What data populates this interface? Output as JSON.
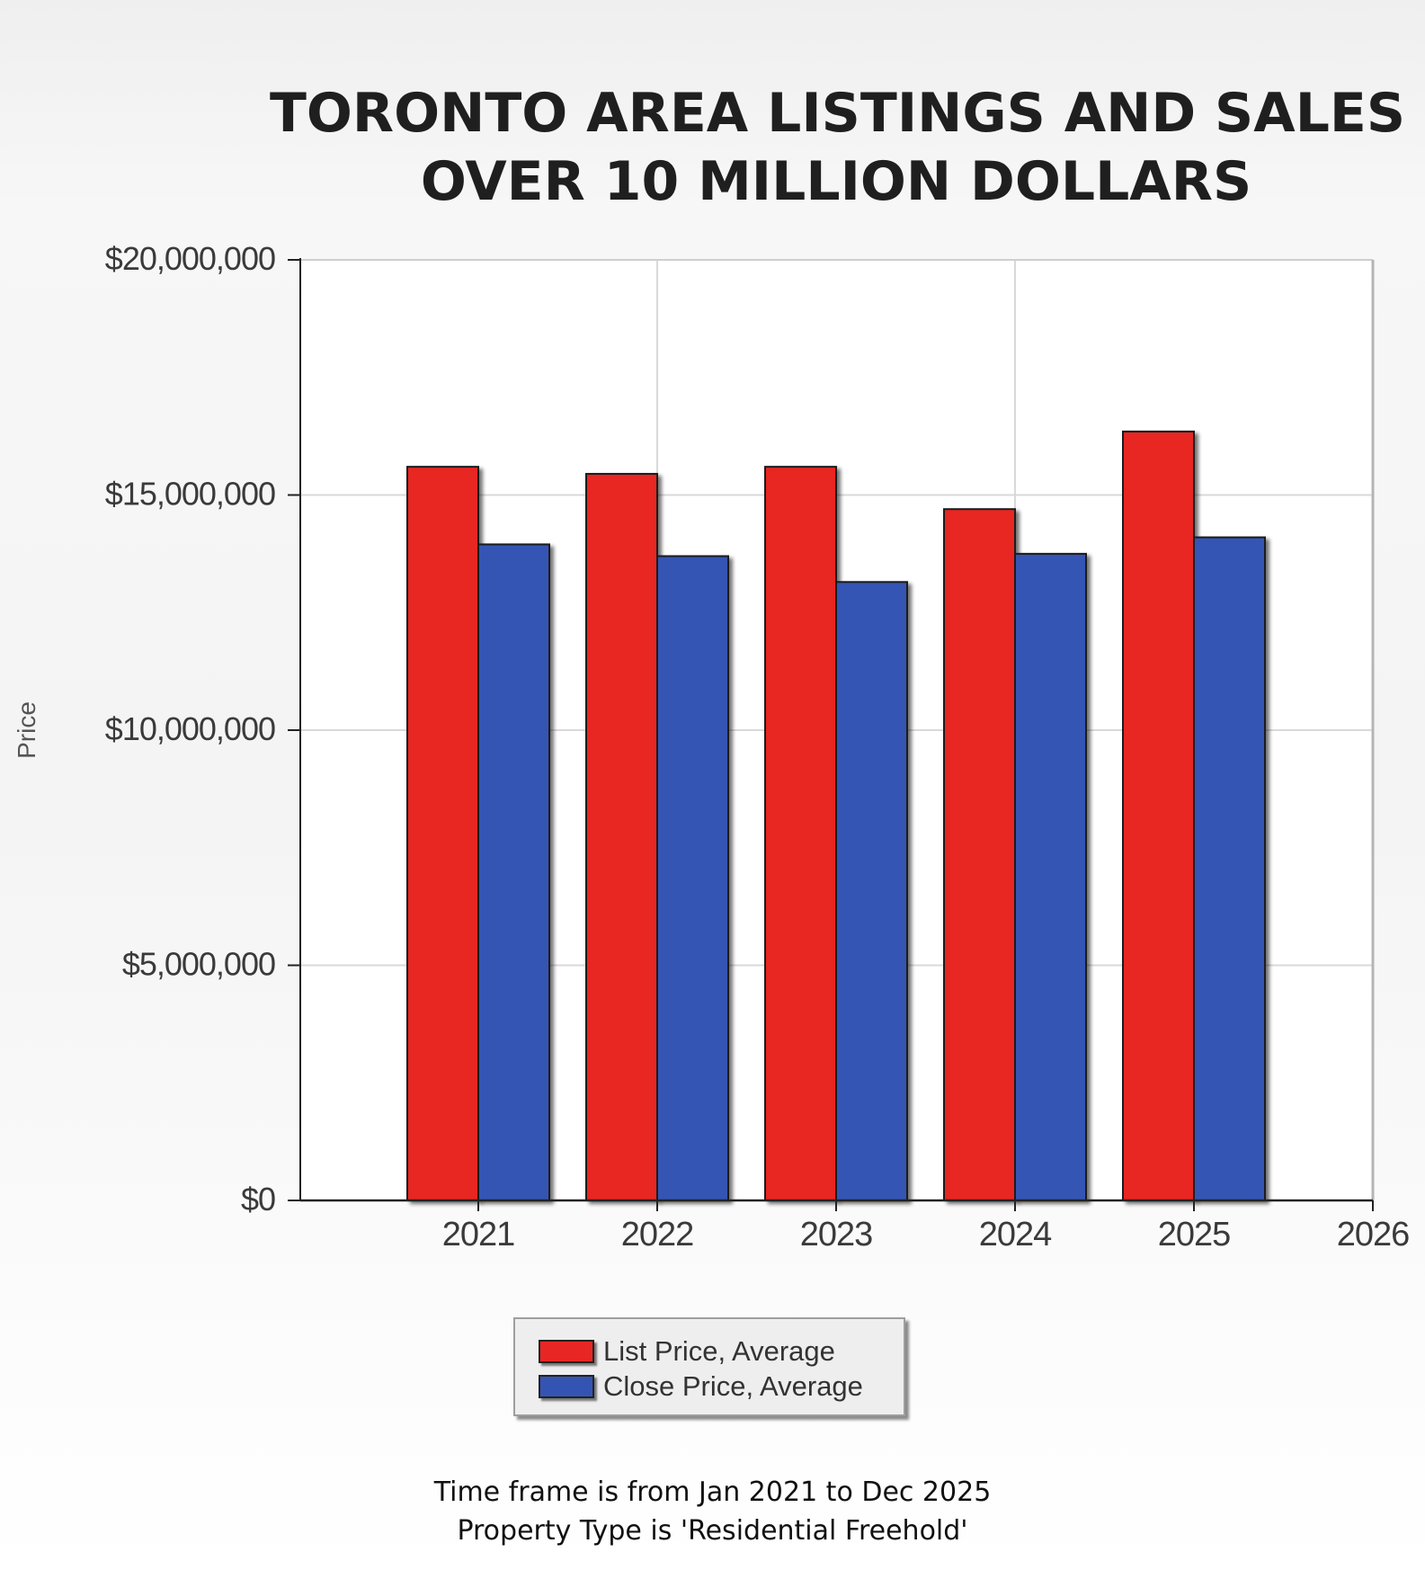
{
  "title_lines": [
    "TORONTO AREA LISTINGS AND SALES",
    "OVER 10 MILLION DOLLARS"
  ],
  "footer_lines": [
    "Time frame is from Jan 2021 to Dec 2025",
    "Property Type is 'Residential Freehold'"
  ],
  "colors": {
    "list_price": "#e82623",
    "close_price": "#3454b4"
  },
  "chart_data": {
    "type": "bar",
    "title": "TORONTO AREA LISTINGS AND SALES OVER 10 MILLION DOLLARS",
    "xlabel": "",
    "ylabel": "Price",
    "categories": [
      "2021",
      "2022",
      "2023",
      "2024",
      "2025"
    ],
    "x_ticks": [
      "2021",
      "2022",
      "2023",
      "2024",
      "2025",
      "2026"
    ],
    "y_ticks": [
      {
        "value": 0,
        "label": "$0"
      },
      {
        "value": 5000000,
        "label": "$5,000,000"
      },
      {
        "value": 10000000,
        "label": "$10,000,000"
      },
      {
        "value": 15000000,
        "label": "$15,000,000"
      },
      {
        "value": 20000000,
        "label": "$20,000,000"
      }
    ],
    "ylim": [
      0,
      20000000
    ],
    "grid": true,
    "legend_position": "bottom-center",
    "series": [
      {
        "name": "List Price, Average",
        "color_key": "list_price",
        "values": [
          15600000,
          15450000,
          15600000,
          14700000,
          16350000
        ]
      },
      {
        "name": "Close Price, Average",
        "color_key": "close_price",
        "values": [
          13950000,
          13700000,
          13150000,
          13750000,
          14100000
        ]
      }
    ]
  }
}
